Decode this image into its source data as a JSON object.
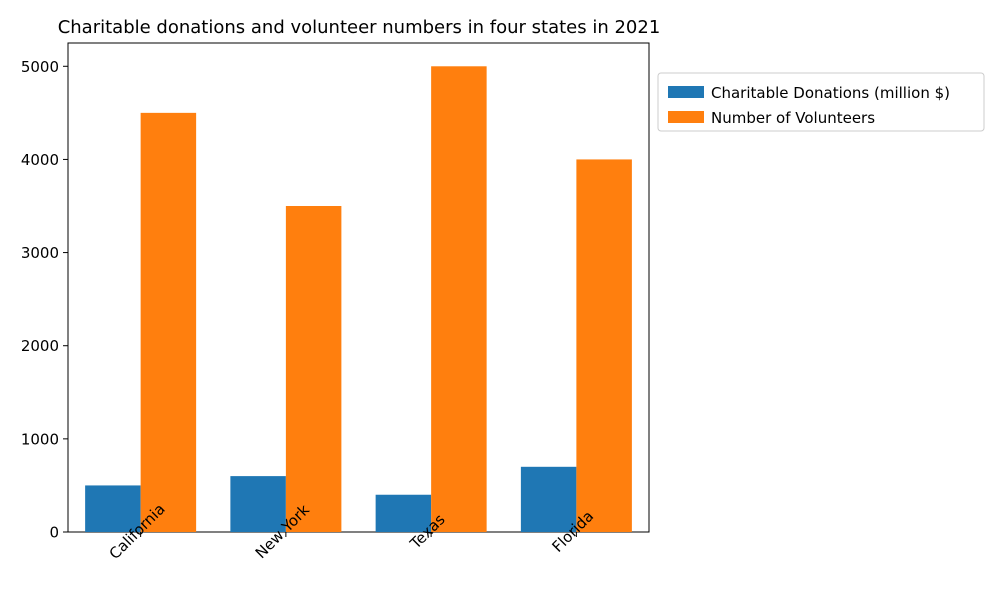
{
  "chart_data": {
    "type": "bar",
    "title": "Charitable donations and volunteer numbers in four states in 2021",
    "xlabel": "",
    "ylabel": "",
    "categories": [
      "California",
      "New York",
      "Texas",
      "Florida"
    ],
    "series": [
      {
        "name": "Charitable Donations (million $)",
        "values": [
          500,
          600,
          400,
          700
        ],
        "color": "#1f77b4"
      },
      {
        "name": "Number of Volunteers",
        "values": [
          4500,
          3500,
          5000,
          4000
        ],
        "color": "#ff7f0e"
      }
    ],
    "ylim": [
      0,
      5250
    ],
    "yticks": [
      0,
      1000,
      2000,
      3000,
      4000,
      5000
    ],
    "grid": false,
    "legend_position": "outside-top-right"
  }
}
